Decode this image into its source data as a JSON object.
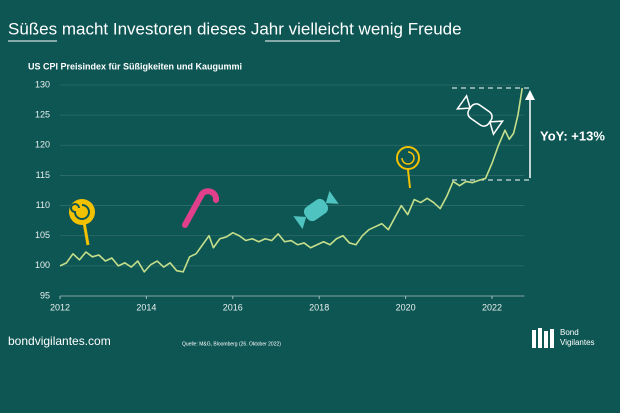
{
  "chart_data": {
    "type": "line",
    "title": "Süßes macht Investoren dieses Jahr vielleicht wenig Freude",
    "subtitle": "US CPI Preisindex für Süßigkeiten und Kaugummi",
    "annotation": "YoY: +13%",
    "source": "Quelle: M&G, Bloomberg (26. Oktober 2022)",
    "website": "bondvigilantes.com",
    "logo": [
      "Bond",
      "Vigilantes"
    ],
    "x": [
      2012.0,
      2012.15,
      2012.3,
      2012.45,
      2012.6,
      2012.75,
      2012.9,
      2013.05,
      2013.2,
      2013.35,
      2013.5,
      2013.65,
      2013.8,
      2013.95,
      2014.1,
      2014.25,
      2014.4,
      2014.55,
      2014.7,
      2014.85,
      2015.0,
      2015.15,
      2015.3,
      2015.45,
      2015.55,
      2015.7,
      2015.85,
      2016.0,
      2016.15,
      2016.3,
      2016.45,
      2016.6,
      2016.75,
      2016.9,
      2017.05,
      2017.2,
      2017.35,
      2017.5,
      2017.65,
      2017.8,
      2017.95,
      2018.1,
      2018.25,
      2018.4,
      2018.55,
      2018.7,
      2018.85,
      2019.0,
      2019.15,
      2019.3,
      2019.45,
      2019.6,
      2019.75,
      2019.9,
      2020.05,
      2020.2,
      2020.35,
      2020.5,
      2020.65,
      2020.8,
      2020.95,
      2021.1,
      2021.25,
      2021.4,
      2021.55,
      2021.7,
      2021.85,
      2022.0,
      2022.15,
      2022.3,
      2022.4,
      2022.5,
      2022.6,
      2022.7
    ],
    "series": [
      {
        "color": "#c5df8a",
        "values": [
          100,
          100.5,
          102,
          101,
          102.3,
          101.5,
          101.8,
          100.8,
          101.3,
          100,
          100.5,
          99.8,
          100.8,
          99,
          100.2,
          100.8,
          99.8,
          100.5,
          99.2,
          99,
          101.5,
          102,
          103.5,
          105,
          103,
          104.5,
          104.8,
          105.5,
          105,
          104.2,
          104.5,
          104,
          104.5,
          104.2,
          105.3,
          104,
          104.2,
          103.5,
          103.8,
          103,
          103.5,
          104,
          103.5,
          104.5,
          105,
          103.8,
          103.5,
          105,
          106,
          106.5,
          107,
          106,
          108,
          110,
          108.5,
          111,
          110.5,
          111.2,
          110.5,
          109.5,
          111.5,
          114,
          113.3,
          114,
          113.8,
          114.2,
          114.5,
          117,
          120,
          122.5,
          121,
          122,
          125,
          129.5
        ]
      }
    ],
    "xlim": [
      2012,
      2022.75
    ],
    "xticks": [
      2012,
      2014,
      2016,
      2018,
      2020,
      2022
    ],
    "ylim": [
      95,
      130
    ],
    "yticks": [
      95,
      100,
      105,
      110,
      115,
      120,
      125,
      130
    ],
    "grid": true
  }
}
